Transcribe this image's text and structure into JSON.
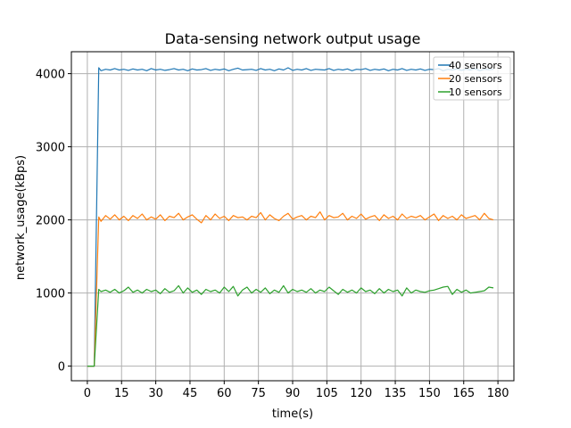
{
  "chart_data": {
    "type": "line",
    "title": "Data-sensing network output usage",
    "xlabel": "time(s)",
    "ylabel": "network_usage(kBps)",
    "xlim": [
      -7,
      187
    ],
    "ylim": [
      -200,
      4300
    ],
    "xticks": [
      0,
      15,
      30,
      45,
      60,
      75,
      90,
      105,
      120,
      135,
      150,
      165,
      180
    ],
    "yticks": [
      0,
      1000,
      2000,
      3000,
      4000
    ],
    "grid": true,
    "legend_position": "top-right",
    "series": [
      {
        "name": "40 sensors",
        "color": "#1f77b4",
        "x": [
          0,
          3,
          5,
          6,
          8,
          10,
          12,
          14,
          16,
          18,
          20,
          22,
          24,
          26,
          28,
          30,
          32,
          34,
          36,
          38,
          40,
          42,
          44,
          46,
          48,
          50,
          52,
          54,
          56,
          58,
          60,
          62,
          64,
          66,
          68,
          70,
          72,
          74,
          76,
          78,
          80,
          82,
          84,
          86,
          88,
          90,
          92,
          94,
          96,
          98,
          100,
          102,
          104,
          106,
          108,
          110,
          112,
          114,
          116,
          118,
          120,
          122,
          124,
          126,
          128,
          130,
          132,
          134,
          136,
          138,
          140,
          142,
          144,
          146,
          148,
          150,
          152,
          154,
          156,
          158,
          160,
          162,
          164,
          166,
          168,
          170,
          172,
          174,
          176,
          178
        ],
        "y": [
          0,
          0,
          4080,
          4040,
          4060,
          4050,
          4070,
          4050,
          4060,
          4045,
          4065,
          4050,
          4060,
          4040,
          4070,
          4050,
          4060,
          4045,
          4055,
          4070,
          4050,
          4060,
          4040,
          4065,
          4050,
          4055,
          4070,
          4045,
          4060,
          4050,
          4065,
          4040,
          4060,
          4075,
          4050,
          4055,
          4060,
          4045,
          4070,
          4050,
          4060,
          4040,
          4065,
          4050,
          4080,
          4045,
          4060,
          4050,
          4070,
          4045,
          4060,
          4055,
          4050,
          4070,
          4045,
          4060,
          4050,
          4065,
          4040,
          4060,
          4055,
          4070,
          4045,
          4060,
          4050,
          4065,
          4040,
          4060,
          4050,
          4070,
          4045,
          4060,
          4050,
          4065,
          4045,
          4060,
          4055,
          4070,
          4040,
          4060,
          4050,
          4065,
          4045,
          4060,
          4050,
          4070,
          4040,
          4060,
          4055,
          4060
        ]
      },
      {
        "name": "20 sensors",
        "color": "#ff7f0e",
        "x": [
          0,
          3,
          5,
          6,
          8,
          10,
          12,
          14,
          16,
          18,
          20,
          22,
          24,
          26,
          28,
          30,
          32,
          34,
          36,
          38,
          40,
          42,
          44,
          46,
          48,
          50,
          52,
          54,
          56,
          58,
          60,
          62,
          64,
          66,
          68,
          70,
          72,
          74,
          76,
          78,
          80,
          82,
          84,
          86,
          88,
          90,
          92,
          94,
          96,
          98,
          100,
          102,
          104,
          106,
          108,
          110,
          112,
          114,
          116,
          118,
          120,
          122,
          124,
          126,
          128,
          130,
          132,
          134,
          136,
          138,
          140,
          142,
          144,
          146,
          148,
          150,
          152,
          154,
          156,
          158,
          160,
          162,
          164,
          166,
          168,
          170,
          172,
          174,
          176,
          178
        ],
        "y": [
          0,
          0,
          2040,
          1980,
          2060,
          2010,
          2070,
          2000,
          2050,
          1990,
          2060,
          2020,
          2080,
          2000,
          2040,
          2010,
          2070,
          1990,
          2050,
          2030,
          2090,
          2000,
          2040,
          2070,
          2010,
          1960,
          2060,
          2000,
          2080,
          2020,
          2050,
          1990,
          2060,
          2030,
          2040,
          2000,
          2050,
          2030,
          2100,
          2000,
          2070,
          2020,
          1990,
          2050,
          2090,
          2010,
          2040,
          2060,
          2000,
          2050,
          2030,
          2110,
          2000,
          2060,
          2030,
          2040,
          2090,
          2000,
          2050,
          2020,
          2080,
          2010,
          2040,
          2060,
          1990,
          2070,
          2020,
          2050,
          2000,
          2080,
          2020,
          2050,
          2030,
          2060,
          2000,
          2040,
          2080,
          1990,
          2060,
          2020,
          2050,
          2000,
          2070,
          2020,
          2040,
          2060,
          2000,
          2090,
          2020,
          2000
        ]
      },
      {
        "name": "10 sensors",
        "color": "#2ca02c",
        "x": [
          0,
          3,
          5,
          6,
          8,
          10,
          12,
          14,
          16,
          18,
          20,
          22,
          24,
          26,
          28,
          30,
          32,
          34,
          36,
          38,
          40,
          42,
          44,
          46,
          48,
          50,
          52,
          54,
          56,
          58,
          60,
          62,
          64,
          66,
          68,
          70,
          72,
          74,
          76,
          78,
          80,
          82,
          84,
          86,
          88,
          90,
          92,
          94,
          96,
          98,
          100,
          102,
          104,
          106,
          108,
          110,
          112,
          114,
          116,
          118,
          120,
          122,
          124,
          126,
          128,
          130,
          132,
          134,
          136,
          138,
          140,
          142,
          144,
          146,
          148,
          150,
          152,
          154,
          156,
          158,
          160,
          162,
          164,
          166,
          168,
          170,
          172,
          174,
          176,
          178
        ],
        "y": [
          0,
          0,
          1050,
          1020,
          1040,
          1010,
          1050,
          1000,
          1030,
          1080,
          1010,
          1040,
          1000,
          1050,
          1020,
          1040,
          990,
          1060,
          1010,
          1030,
          1100,
          1000,
          1070,
          1010,
          1040,
          980,
          1050,
          1020,
          1040,
          1000,
          1080,
          1020,
          1090,
          960,
          1040,
          1080,
          1000,
          1050,
          1010,
          1070,
          990,
          1040,
          1010,
          1100,
          1000,
          1050,
          1020,
          1040,
          1010,
          1060,
          1000,
          1040,
          1020,
          1080,
          1030,
          980,
          1050,
          1010,
          1040,
          1000,
          1070,
          1020,
          1040,
          990,
          1060,
          1000,
          1050,
          1020,
          1040,
          960,
          1070,
          1000,
          1040,
          1020,
          1010,
          1030,
          1040,
          1060,
          1080,
          1090,
          980,
          1050,
          1010,
          1040,
          1000,
          1010,
          1020,
          1030,
          1080,
          1070
        ]
      }
    ]
  }
}
